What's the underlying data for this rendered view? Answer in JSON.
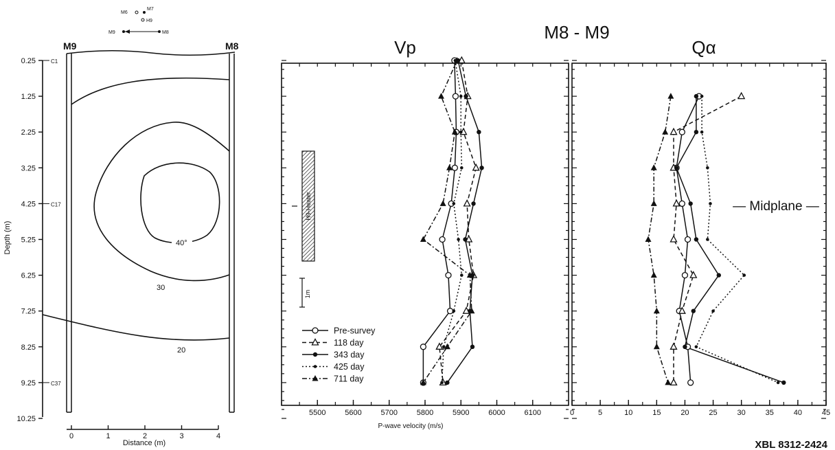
{
  "figure_code": "XBL 8312-2424",
  "section_title": "M8 - M9",
  "key_map": {
    "labels": [
      "M6",
      "M7",
      "H9",
      "M9",
      "M8"
    ]
  },
  "contour": {
    "left_borehole": "M9",
    "right_borehole": "M8",
    "ylabel": "Depth (m)",
    "xlabel": "Distance (m)",
    "depth_ticks": [
      "0.25",
      "1.25",
      "2.25",
      "3.25",
      "4.25",
      "5.25",
      "6.25",
      "7.25",
      "8.25",
      "9.25",
      "10.25"
    ],
    "distance_ticks": [
      "0",
      "1",
      "2",
      "3",
      "4"
    ],
    "marks": [
      {
        "label": "C1",
        "depth": 0.25
      },
      {
        "label": "C17",
        "depth": 4.25
      },
      {
        "label": "C37",
        "depth": 9.25
      }
    ],
    "contours": [
      {
        "label": "40°"
      },
      {
        "label": "30"
      },
      {
        "label": "20"
      }
    ]
  },
  "heater": {
    "label": "H9-Heater",
    "scale_label": "1m"
  },
  "midplane_label": "— Midplane —",
  "chart_data": [
    {
      "type": "line",
      "title": "Vp",
      "xlabel": "P-wave velocity (m/s)",
      "ylabel": "",
      "xlim": [
        5400,
        6200
      ],
      "x_ticks": [
        "5500",
        "5600",
        "5700",
        "5800",
        "5900",
        "6000",
        "6100"
      ],
      "y": [
        0.25,
        1.25,
        2.25,
        3.25,
        4.25,
        5.25,
        6.25,
        7.25,
        8.25,
        9.25
      ],
      "legend": "bottom-left",
      "series": [
        {
          "name": "Pre-survey",
          "marker": "open-circle",
          "dash": "solid",
          "values": [
            5882,
            5885,
            5887,
            5883,
            5873,
            5848,
            5865,
            5870,
            5795,
            5795
          ]
        },
        {
          "name": "118 day",
          "marker": "open-triangle",
          "dash": "dashed",
          "values": [
            5902,
            5919,
            5907,
            5942,
            5917,
            5922,
            5935,
            5915,
            5840,
            5850
          ]
        },
        {
          "name": "343 day",
          "marker": "dot",
          "dash": "solid",
          "values": [
            5892,
            5914,
            5950,
            5958,
            5935,
            5912,
            5932,
            5925,
            5932,
            5862
          ]
        },
        {
          "name": "425 day",
          "marker": "small-dot",
          "dash": "dotted",
          "values": [
            5884,
            5900,
            5900,
            5902,
            5880,
            5893,
            5902,
            5880,
            5852,
            5847
          ]
        },
        {
          "name": "711 day",
          "marker": "filled-triangle",
          "dash": "dash-dot",
          "values": [
            5889,
            5845,
            5883,
            5868,
            5850,
            5795,
            5925,
            5930,
            5862,
            5795
          ]
        }
      ]
    },
    {
      "type": "line",
      "title": "Qα",
      "xlabel": "",
      "ylabel": "",
      "xlim": [
        0,
        45
      ],
      "x_ticks": [
        "0",
        "5",
        "10",
        "15",
        "20",
        "25",
        "30",
        "35",
        "40",
        "45"
      ],
      "y": [
        1.25,
        2.25,
        3.25,
        4.25,
        5.25,
        6.25,
        7.25,
        8.25,
        9.25
      ],
      "series": [
        {
          "name": "Pre-survey",
          "marker": "open-circle",
          "dash": "solid",
          "values": [
            22.5,
            19.5,
            18.5,
            19.5,
            20.5,
            20.0,
            19.0,
            20.5,
            21.0
          ]
        },
        {
          "name": "118 day",
          "marker": "open-triangle",
          "dash": "dashed",
          "values": [
            30.0,
            18.0,
            18.0,
            18.5,
            18.0,
            21.5,
            19.5,
            18.0,
            18.0
          ]
        },
        {
          "name": "343 day",
          "marker": "dot",
          "dash": "solid",
          "values": [
            22.0,
            22.0,
            18.5,
            21.0,
            22.0,
            26.0,
            21.5,
            20.0,
            37.5
          ]
        },
        {
          "name": "425 day",
          "marker": "small-dot",
          "dash": "dotted",
          "values": [
            23.0,
            23.0,
            24.0,
            24.5,
            24.0,
            30.5,
            25.0,
            22.0,
            36.5
          ]
        },
        {
          "name": "711 day",
          "marker": "filled-triangle",
          "dash": "dash-dot",
          "values": [
            17.5,
            16.5,
            14.5,
            14.5,
            13.5,
            14.5,
            15.0,
            15.0,
            17.0
          ]
        }
      ]
    }
  ]
}
